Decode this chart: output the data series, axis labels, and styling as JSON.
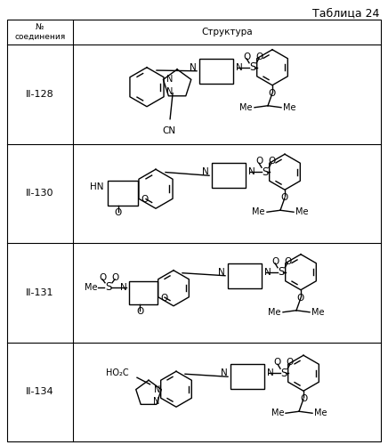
{
  "title": "Таблица 24",
  "header_col1": "№\nсоединения",
  "header_col2": "Структура",
  "compounds": [
    "II-128",
    "II-130",
    "II-131",
    "II-134"
  ],
  "bg_color": "#ffffff",
  "text_color": "#000000",
  "fig_width": 4.36,
  "fig_height": 5.0,
  "dpi": 100
}
